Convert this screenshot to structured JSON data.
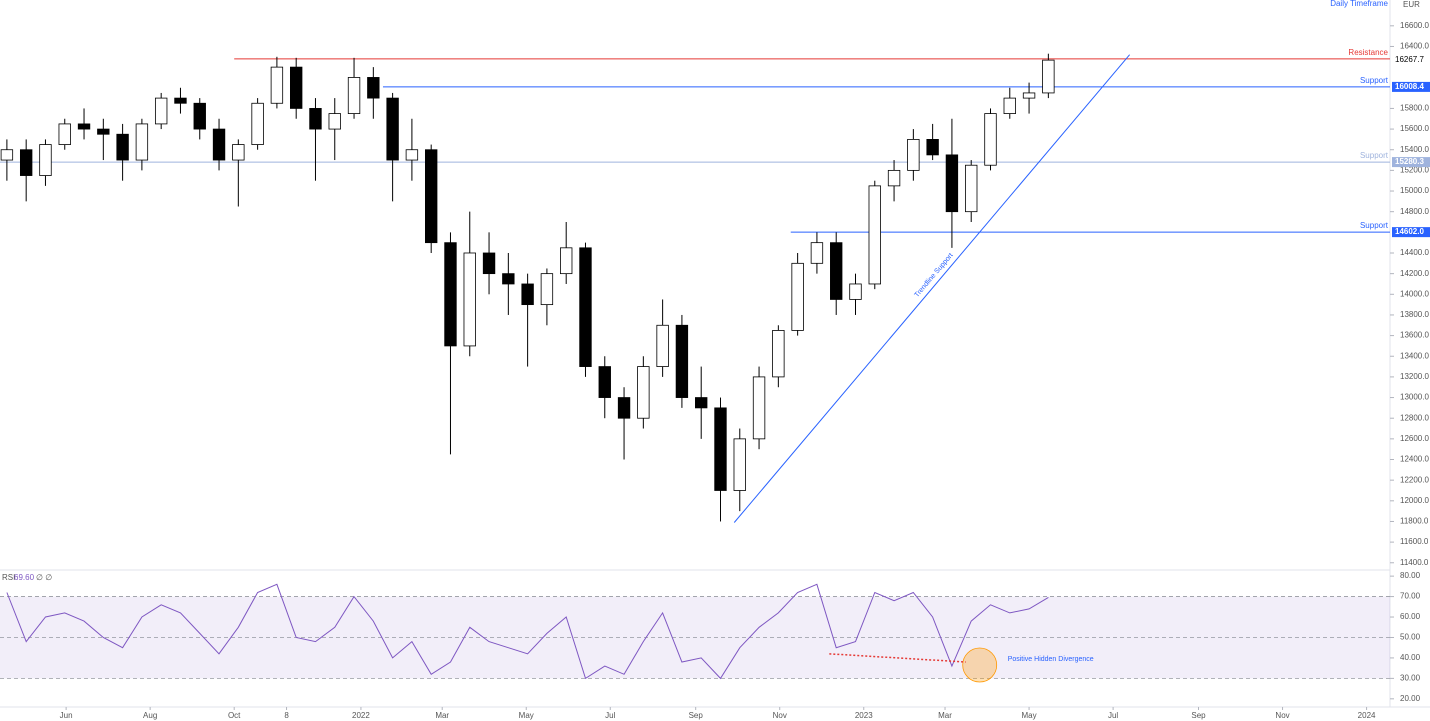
{
  "chart_data": {
    "type": "candlestick",
    "annotation": "Daily Timeframe",
    "currency": "EUR",
    "xlim": [
      "2021-04-14",
      "2024-01-18"
    ],
    "xticks": [
      {
        "value": "2021-06-01",
        "label": "Jun"
      },
      {
        "value": "2021-08-01",
        "label": "Aug"
      },
      {
        "value": "2021-10-01",
        "label": "Oct"
      },
      {
        "value": "2021-11-08",
        "label": "8"
      },
      {
        "value": "2022-01-01",
        "label": "2022"
      },
      {
        "value": "2022-03-01",
        "label": "Mar"
      },
      {
        "value": "2022-05-01",
        "label": "May"
      },
      {
        "value": "2022-07-01",
        "label": "Jul"
      },
      {
        "value": "2022-09-01",
        "label": "Sep"
      },
      {
        "value": "2022-11-01",
        "label": "Nov"
      },
      {
        "value": "2023-01-01",
        "label": "2023"
      },
      {
        "value": "2023-03-01",
        "label": "Mar"
      },
      {
        "value": "2023-05-01",
        "label": "May"
      },
      {
        "value": "2023-07-01",
        "label": "Jul"
      },
      {
        "value": "2023-09-01",
        "label": "Sep"
      },
      {
        "value": "2023-11-01",
        "label": "Nov"
      },
      {
        "value": "2024-01-01",
        "label": "2024"
      }
    ],
    "ylim": [
      11330,
      16850
    ],
    "yticks": [
      {
        "value": 11400,
        "label": "11400.0"
      },
      {
        "value": 11600,
        "label": "11600.0"
      },
      {
        "value": 11800,
        "label": "11800.0"
      },
      {
        "value": 12000,
        "label": "12000.0"
      },
      {
        "value": 12200,
        "label": "12200.0"
      },
      {
        "value": 12400,
        "label": "12400.0"
      },
      {
        "value": 12600,
        "label": "12600.0"
      },
      {
        "value": 12800,
        "label": "12800.0"
      },
      {
        "value": 13000,
        "label": "13000.0"
      },
      {
        "value": 13200,
        "label": "13200.0"
      },
      {
        "value": 13400,
        "label": "13400.0"
      },
      {
        "value": 13600,
        "label": "13600.0"
      },
      {
        "value": 13800,
        "label": "13800.0"
      },
      {
        "value": 14000,
        "label": "14000.0"
      },
      {
        "value": 14200,
        "label": "14200.0"
      },
      {
        "value": 14400,
        "label": "14400.0"
      },
      {
        "value": 14800,
        "label": "14800.0"
      },
      {
        "value": 15000,
        "label": "15000.0"
      },
      {
        "value": 15200,
        "label": "15200.0"
      },
      {
        "value": 15400,
        "label": "15400.0"
      },
      {
        "value": 15600,
        "label": "15600.0"
      },
      {
        "value": 15800,
        "label": "15800.0"
      },
      {
        "value": 16400,
        "label": "16400.0"
      },
      {
        "value": 16600,
        "label": "16600.0"
      }
    ],
    "up_color": "#ffffff",
    "down_color": "#000000",
    "ohlc": {
      "x": [
        "2021-04-19",
        "2021-05-03",
        "2021-05-17",
        "2021-05-31",
        "2021-06-14",
        "2021-06-28",
        "2021-07-12",
        "2021-07-26",
        "2021-08-09",
        "2021-08-23",
        "2021-09-06",
        "2021-09-20",
        "2021-10-04",
        "2021-10-18",
        "2021-11-01",
        "2021-11-15",
        "2021-11-29",
        "2021-12-13",
        "2021-12-27",
        "2022-01-10",
        "2022-01-24",
        "2022-02-07",
        "2022-02-21",
        "2022-03-07",
        "2022-03-21",
        "2022-04-04",
        "2022-04-18",
        "2022-05-02",
        "2022-05-16",
        "2022-05-30",
        "2022-06-13",
        "2022-06-27",
        "2022-07-11",
        "2022-07-25",
        "2022-08-08",
        "2022-08-22",
        "2022-09-05",
        "2022-09-19",
        "2022-10-03",
        "2022-10-17",
        "2022-10-31",
        "2022-11-14",
        "2022-11-28",
        "2022-12-12",
        "2022-12-26",
        "2023-01-09",
        "2023-01-23",
        "2023-02-06",
        "2023-02-20",
        "2023-03-06",
        "2023-03-20",
        "2023-04-03",
        "2023-04-17",
        "2023-05-01",
        "2023-05-15"
      ],
      "open": [
        15300,
        15400,
        15150,
        15450,
        15650,
        15600,
        15550,
        15300,
        15650,
        15900,
        15850,
        15600,
        15300,
        15450,
        15850,
        16200,
        15800,
        15600,
        15750,
        16100,
        15900,
        15300,
        15400,
        14500,
        13500,
        14400,
        14200,
        14100,
        13900,
        14200,
        14450,
        13300,
        13000,
        12800,
        13300,
        13700,
        13000,
        12900,
        12100,
        12600,
        13200,
        13650,
        14300,
        14500,
        13950,
        14100,
        15050,
        15200,
        15500,
        15350,
        14800,
        15250,
        15750,
        15900,
        15950
      ],
      "high": [
        15500,
        15500,
        15500,
        15700,
        15800,
        15700,
        15650,
        15700,
        15950,
        16000,
        15900,
        15700,
        15500,
        15900,
        16300,
        16290,
        15900,
        15900,
        16290,
        16200,
        15950,
        15700,
        15450,
        14600,
        14800,
        14600,
        14400,
        14200,
        14250,
        14700,
        14500,
        13400,
        13100,
        13400,
        13950,
        13800,
        13300,
        13000,
        12700,
        13300,
        13700,
        14400,
        14600,
        14600,
        14200,
        15100,
        15300,
        15600,
        15650,
        15700,
        15300,
        15800,
        16000,
        16050,
        16330
      ],
      "low": [
        15100,
        14900,
        15050,
        15400,
        15500,
        15300,
        15100,
        15200,
        15600,
        15750,
        15500,
        15200,
        14850,
        15400,
        15800,
        15700,
        15100,
        15300,
        15700,
        15700,
        14900,
        15100,
        14400,
        12450,
        13400,
        14000,
        13800,
        13300,
        13700,
        14100,
        13200,
        12800,
        12400,
        12700,
        13200,
        12900,
        12600,
        11800,
        11900,
        12500,
        13100,
        13600,
        14200,
        13800,
        13800,
        14050,
        14900,
        15100,
        15300,
        14450,
        14700,
        15200,
        15700,
        15750,
        15900
      ],
      "close": [
        15400,
        15150,
        15450,
        15650,
        15600,
        15550,
        15300,
        15650,
        15900,
        15850,
        15600,
        15300,
        15450,
        15850,
        16200,
        15800,
        15600,
        15750,
        16100,
        15900,
        15300,
        15400,
        14500,
        13500,
        14400,
        14200,
        14100,
        13900,
        14200,
        14450,
        13300,
        13000,
        12800,
        13300,
        13700,
        13000,
        12900,
        12100,
        12600,
        13200,
        13650,
        14300,
        14500,
        13950,
        14100,
        15050,
        15200,
        15500,
        15350,
        14800,
        15250,
        15750,
        15900,
        15950,
        16267.7
      ]
    },
    "levels": [
      {
        "name": "Resistance",
        "value": 16280,
        "start": "2021-10-01",
        "color": "#e53935",
        "axis_tag": false
      },
      {
        "name": "Support",
        "value": 16008.4,
        "start": "2022-01-17",
        "color": "#2962ff",
        "axis_tag": true
      },
      {
        "name": "Support",
        "value": 15280.3,
        "start": "2021-04-14",
        "color": "#9fb3dd",
        "axis_tag": true
      },
      {
        "name": "Support",
        "value": 14602,
        "label": "14602.0",
        "start": "2022-11-09",
        "color": "#2962ff",
        "axis_tag": true
      }
    ],
    "trendline": {
      "name": "Trendline Support",
      "start": [
        "2022-09-29",
        11790
      ],
      "end": [
        "2023-07-13",
        16320
      ],
      "color": "#2962ff"
    },
    "rsi": {
      "name": "RSI",
      "readout": {
        "value": 69.6,
        "label": "69.60"
      },
      "readout_extra": "∅ ∅",
      "color": "#7e57c2",
      "ylim": [
        16,
        83
      ],
      "yticks": [
        {
          "value": 20,
          "label": "20.00"
        },
        {
          "value": 30,
          "label": "30.00"
        },
        {
          "value": 40,
          "label": "40.00"
        },
        {
          "value": 50,
          "label": "50.00"
        },
        {
          "value": 60,
          "label": "60.00"
        },
        {
          "value": 70,
          "label": "70.00"
        },
        {
          "value": 80,
          "label": "80.00"
        }
      ],
      "band": [
        30,
        70
      ],
      "midline": 50,
      "values": [
        72,
        48,
        60,
        62,
        58,
        50,
        45,
        60,
        66,
        62,
        52,
        42,
        55,
        72,
        76,
        50,
        48,
        55,
        70,
        58,
        40,
        48,
        32,
        38,
        55,
        48,
        45,
        42,
        52,
        60,
        30,
        36,
        32,
        48,
        62,
        38,
        40,
        30,
        45,
        55,
        62,
        72,
        76,
        45,
        48,
        72,
        68,
        72,
        60,
        36,
        58,
        66,
        62,
        64,
        69.6
      ]
    },
    "divergence": {
      "name": "Positive Hidden Divergence",
      "start": [
        "2022-12-07",
        42
      ],
      "end": [
        "2023-03-16",
        38
      ],
      "color": "#e53935"
    }
  }
}
